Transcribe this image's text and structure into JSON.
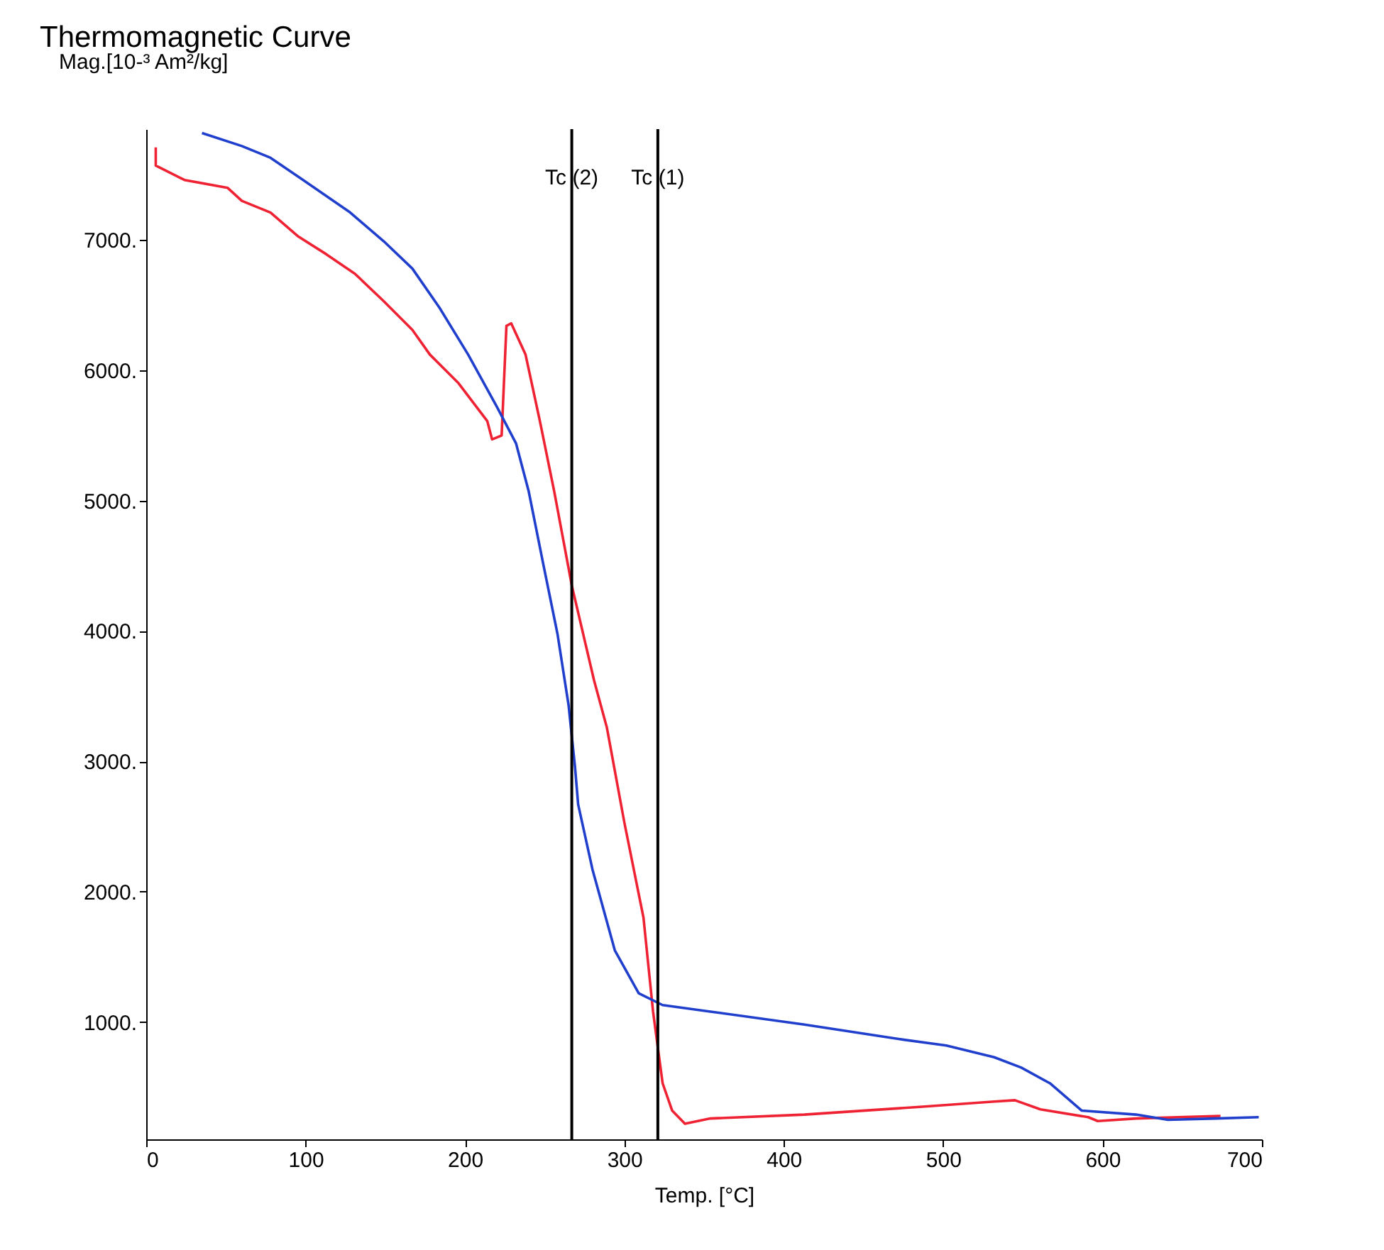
{
  "chart_data": {
    "type": "line",
    "title": "Thermomagnetic Curve",
    "xlabel": "Temp. [°C]",
    "ylabel": "Mag.[10-³ Am²/kg]",
    "xlim": [
      0,
      700
    ],
    "xticks": [
      0,
      100,
      200,
      300,
      400,
      500,
      600,
      700
    ],
    "ylim": [
      100,
      7850
    ],
    "yticks": [
      {
        "value": 1000,
        "label": "1000."
      },
      {
        "value": 2000,
        "label": "2000."
      },
      {
        "value": 3000,
        "label": "3000."
      },
      {
        "value": 4000,
        "label": "4000."
      },
      {
        "value": 5000,
        "label": "5000."
      },
      {
        "value": 6000,
        "label": "6000."
      },
      {
        "value": 7000,
        "label": "7000."
      }
    ],
    "grid": false,
    "line_style": "solid",
    "series": [
      {
        "color": "#ee2233",
        "x": [
          6,
          6,
          24,
          51,
          60,
          78,
          95,
          113,
          131,
          149,
          167,
          178,
          196,
          214,
          217,
          223,
          226,
          229,
          238,
          247,
          256,
          267,
          281,
          289,
          300,
          312,
          318,
          324,
          330,
          338,
          354,
          413,
          487,
          532,
          545,
          561,
          591,
          597,
          621,
          674
        ],
        "values": [
          7710,
          7570,
          7460,
          7400,
          7300,
          7210,
          7030,
          6890,
          6740,
          6530,
          6310,
          6120,
          5900,
          5610,
          5470,
          5500,
          6340,
          6360,
          6120,
          5610,
          5070,
          4350,
          3620,
          3260,
          2530,
          1800,
          1080,
          530,
          320,
          220,
          260,
          290,
          350,
          390,
          400,
          330,
          270,
          240,
          260,
          280
        ]
      },
      {
        "color": "#1f3fcc",
        "x": [
          35,
          60,
          78,
          102,
          128,
          149,
          167,
          184,
          202,
          220,
          232,
          240,
          249,
          258,
          265,
          269,
          271,
          280,
          294,
          309,
          324,
          354,
          413,
          472,
          502,
          532,
          549,
          567,
          587,
          621,
          641,
          671,
          698
        ],
        "values": [
          7820,
          7720,
          7630,
          7430,
          7210,
          6990,
          6780,
          6480,
          6120,
          5720,
          5440,
          5070,
          4520,
          3980,
          3430,
          2960,
          2670,
          2170,
          1550,
          1220,
          1130,
          1080,
          980,
          870,
          820,
          730,
          650,
          530,
          320,
          290,
          250,
          260,
          270
        ]
      }
    ],
    "ref_lines": [
      {
        "axis": "x",
        "value": 267,
        "label": "Tc (2)"
      },
      {
        "axis": "x",
        "value": 321,
        "label": "Tc (1)"
      }
    ]
  }
}
